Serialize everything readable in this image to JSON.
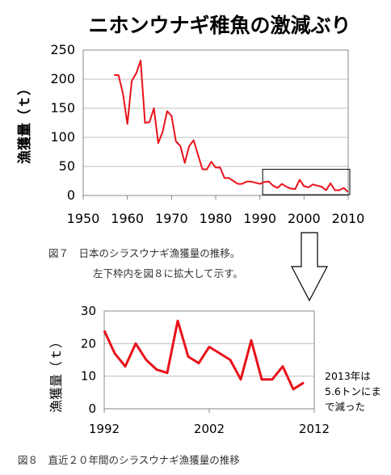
{
  "chart_data": [
    {
      "type": "line",
      "title": "ニホンウナギ稚魚の激減ぶり",
      "ylabel": "漁獲量（ｔ）",
      "xlim": [
        1950,
        2010
      ],
      "ylim": [
        0,
        250
      ],
      "xticks": [
        "1950",
        "1960",
        "1970",
        "1980",
        "1990",
        "2000",
        "2010"
      ],
      "yticks": [
        "0",
        "50",
        "100",
        "150",
        "200",
        "250"
      ],
      "grid": "horizontal",
      "series": [
        {
          "color": "#e8121a",
          "x": [
            1957,
            1958,
            1959,
            1960,
            1961,
            1962,
            1963,
            1964,
            1965,
            1966,
            1967,
            1968,
            1969,
            1970,
            1971,
            1972,
            1973,
            1974,
            1975,
            1976,
            1977,
            1978,
            1979,
            1980,
            1981,
            1982,
            1983,
            1984,
            1985,
            1986,
            1987,
            1988,
            1989,
            1990,
            1991,
            1992,
            1993,
            1994,
            1995,
            1996,
            1997,
            1998,
            1999,
            2000,
            2001,
            2002,
            2003,
            2004,
            2005,
            2006,
            2007,
            2008,
            2009,
            2010
          ],
          "y": [
            207,
            207,
            175,
            123,
            197,
            210,
            232,
            125,
            126,
            150,
            90,
            110,
            145,
            137,
            93,
            85,
            56,
            85,
            95,
            70,
            45,
            45,
            58,
            48,
            48,
            30,
            30,
            25,
            20,
            20,
            24,
            24,
            22,
            20,
            23,
            24,
            17,
            13,
            20,
            15,
            12,
            11,
            27,
            16,
            14,
            19,
            17,
            15,
            9,
            21,
            9,
            9,
            13,
            6
          ]
        }
      ],
      "inset_box": {
        "x": [
          1991,
          2010
        ],
        "y": [
          0,
          45
        ]
      }
    },
    {
      "type": "line",
      "ylabel": "漁獲量（ｔ）",
      "xlim": [
        1992,
        2012
      ],
      "ylim": [
        0,
        30
      ],
      "xticks": [
        "1992",
        "2002",
        "2012"
      ],
      "yticks": [
        "0",
        "10",
        "20",
        "30"
      ],
      "grid": "horizontal",
      "series": [
        {
          "color": "#e8121a",
          "x": [
            1992,
            1993,
            1994,
            1995,
            1996,
            1997,
            1998,
            1999,
            2000,
            2001,
            2002,
            2003,
            2004,
            2005,
            2006,
            2007,
            2008,
            2009,
            2010,
            2011
          ],
          "y": [
            24,
            17,
            13,
            20,
            15,
            12,
            11,
            27,
            16,
            14,
            19,
            17,
            15,
            9,
            21,
            9,
            9,
            13,
            6,
            8
          ]
        }
      ]
    }
  ],
  "captions": {
    "fig7_line1": "図７　日本のシラスウナギ漁獲量の推移。",
    "fig7_line2": "左下枠内を図８に拡大して示す。",
    "fig8": "図８　直近２０年間のシラスウナギ漁獲量の推移"
  },
  "note": {
    "line1": "2013年は",
    "line2": "5.6トンにま",
    "line3": "で減った"
  },
  "colors": {
    "series": "#e8121a",
    "grid": "#bfbfbf",
    "axis": "#888888"
  }
}
